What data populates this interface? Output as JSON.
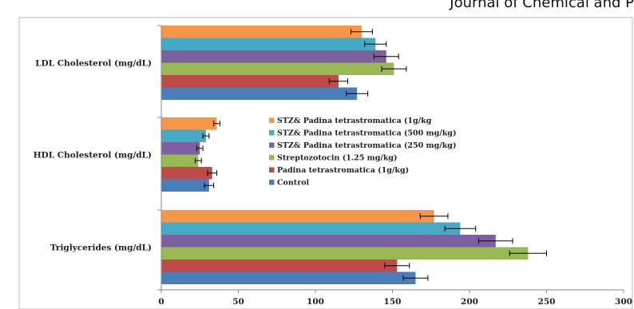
{
  "header": {
    "text": "Journal of Chemical and P"
  },
  "chart_data": {
    "type": "bar",
    "orientation": "horizontal",
    "categories": [
      "Triglycerides (mg/dL)",
      "HDL Cholesterol (mg/dL)",
      "LDL Cholesterol (mg/dL)"
    ],
    "xlim": [
      0,
      300
    ],
    "xticks": [
      "0",
      "50",
      "100",
      "150",
      "200",
      "250",
      "300"
    ],
    "legend_position": "center-right",
    "grid": false,
    "series": [
      {
        "name": "Control",
        "color": "#4a7ebb",
        "values": [
          165,
          31,
          127
        ],
        "errors": [
          8,
          3,
          7
        ]
      },
      {
        "name": "Padina tetrastromatica (1g/kg)",
        "color": "#be4b48",
        "values": [
          153,
          33,
          115
        ],
        "errors": [
          8,
          3,
          6
        ]
      },
      {
        "name": "Streptozotocin (1.25 mg/kg)",
        "color": "#98b954",
        "values": [
          238,
          24,
          151
        ],
        "errors": [
          12,
          2,
          8
        ]
      },
      {
        "name": "STZ& Padina tetrastromatica (250 mg/kg)",
        "color": "#7d60a0",
        "values": [
          217,
          25,
          146
        ],
        "errors": [
          11,
          2,
          8
        ]
      },
      {
        "name": "STZ& Padina tetrastromatica (500 mg/kg)",
        "color": "#46aac5",
        "values": [
          194,
          29,
          139
        ],
        "errors": [
          10,
          2,
          7
        ]
      },
      {
        "name": "STZ& Padina tetrastromatica (1g/kg",
        "color": "#f79646",
        "values": [
          177,
          36,
          130
        ],
        "errors": [
          9,
          2,
          7
        ]
      }
    ]
  }
}
